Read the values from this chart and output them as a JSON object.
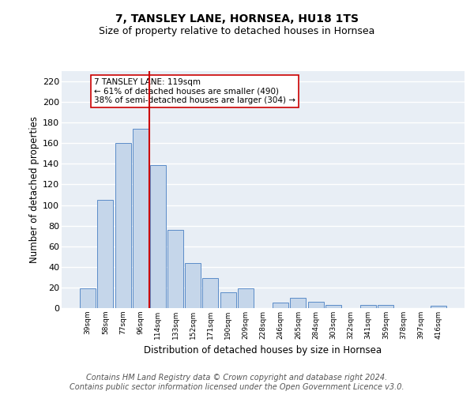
{
  "title": "7, TANSLEY LANE, HORNSEA, HU18 1TS",
  "subtitle": "Size of property relative to detached houses in Hornsea",
  "xlabel": "Distribution of detached houses by size in Hornsea",
  "ylabel": "Number of detached properties",
  "categories": [
    "39sqm",
    "58sqm",
    "77sqm",
    "96sqm",
    "114sqm",
    "133sqm",
    "152sqm",
    "171sqm",
    "190sqm",
    "209sqm",
    "228sqm",
    "246sqm",
    "265sqm",
    "284sqm",
    "303sqm",
    "322sqm",
    "341sqm",
    "359sqm",
    "378sqm",
    "397sqm",
    "416sqm"
  ],
  "values": [
    19,
    105,
    160,
    174,
    139,
    76,
    44,
    29,
    15,
    19,
    0,
    5,
    10,
    6,
    3,
    0,
    3,
    3,
    0,
    0,
    2
  ],
  "bar_color": "#c5d6ea",
  "bar_edge_color": "#5b8cc8",
  "vline_color": "#cc0000",
  "annotation_text": "7 TANSLEY LANE: 119sqm\n← 61% of detached houses are smaller (490)\n38% of semi-detached houses are larger (304) →",
  "annotation_box_color": "#ffffff",
  "annotation_box_edge": "#cc0000",
  "ylim": [
    0,
    230
  ],
  "yticks": [
    0,
    20,
    40,
    60,
    80,
    100,
    120,
    140,
    160,
    180,
    200,
    220
  ],
  "background_color": "#e8eef5",
  "grid_color": "#ffffff",
  "footer": "Contains HM Land Registry data © Crown copyright and database right 2024.\nContains public sector information licensed under the Open Government Licence v3.0.",
  "title_fontsize": 10,
  "subtitle_fontsize": 9,
  "xlabel_fontsize": 8.5,
  "ylabel_fontsize": 8.5,
  "footer_fontsize": 7
}
